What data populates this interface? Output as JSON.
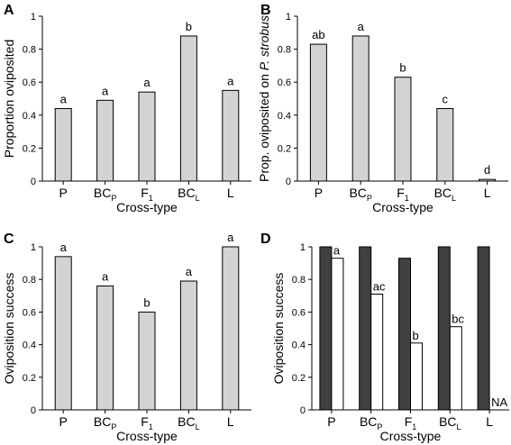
{
  "chart_data": [
    {
      "panel": "A",
      "type": "bar",
      "categories": [
        "P",
        "BC_P",
        "F_1",
        "BC_L",
        "L"
      ],
      "values": [
        0.44,
        0.49,
        0.54,
        0.88,
        0.55
      ],
      "labels": [
        "a",
        "a",
        "a",
        "b",
        "a"
      ],
      "xlabel": "Cross-type",
      "ylabel": "Proportion oviposited",
      "ylim": [
        0,
        1
      ],
      "yticks": [
        "0",
        "0.2",
        "0.4",
        "0.6",
        "0.8",
        "1"
      ],
      "bar_color": "#d3d3d3"
    },
    {
      "panel": "B",
      "type": "bar",
      "categories": [
        "P",
        "BC_P",
        "F_1",
        "BC_L",
        "L"
      ],
      "values": [
        0.83,
        0.88,
        0.63,
        0.44,
        0.01
      ],
      "labels": [
        "ab",
        "a",
        "b",
        "c",
        "d"
      ],
      "xlabel": "Cross-type",
      "ylabel": "Prop. oviposited on ",
      "ylabel_italic": "P. strobus",
      "ylim": [
        0,
        1
      ],
      "yticks": [
        "0",
        "0.2",
        "0.4",
        "0.6",
        "0.8",
        "1"
      ],
      "bar_color": "#d3d3d3"
    },
    {
      "panel": "C",
      "type": "bar",
      "categories": [
        "P",
        "BC_P",
        "F_1",
        "BC_L",
        "L"
      ],
      "values": [
        0.94,
        0.76,
        0.6,
        0.79,
        1.0
      ],
      "labels": [
        "a",
        "a",
        "b",
        "a",
        "a"
      ],
      "xlabel": "Cross-type",
      "ylabel": "Oviposition success",
      "ylim": [
        0,
        1
      ],
      "yticks": [
        "0",
        "0.2",
        "0.4",
        "0.6",
        "0.8",
        "1"
      ],
      "bar_color": "#d3d3d3"
    },
    {
      "panel": "D",
      "type": "bar",
      "categories": [
        "P",
        "BC_P",
        "F_1",
        "BC_L",
        "L"
      ],
      "series": [
        {
          "values": [
            1.0,
            1.0,
            0.93,
            1.0,
            1.0
          ],
          "color": "#404040"
        },
        {
          "values": [
            0.93,
            0.71,
            0.41,
            0.51,
            null
          ],
          "color": "#ffffff",
          "labels": [
            "a",
            "ac",
            "b",
            "bc",
            "NA"
          ]
        }
      ],
      "xlabel": "Cross-type",
      "ylabel": "Oviposition success",
      "ylim": [
        0,
        1
      ],
      "yticks": [
        "0",
        "0.2",
        "0.4",
        "0.6",
        "0.8",
        "1"
      ]
    }
  ]
}
